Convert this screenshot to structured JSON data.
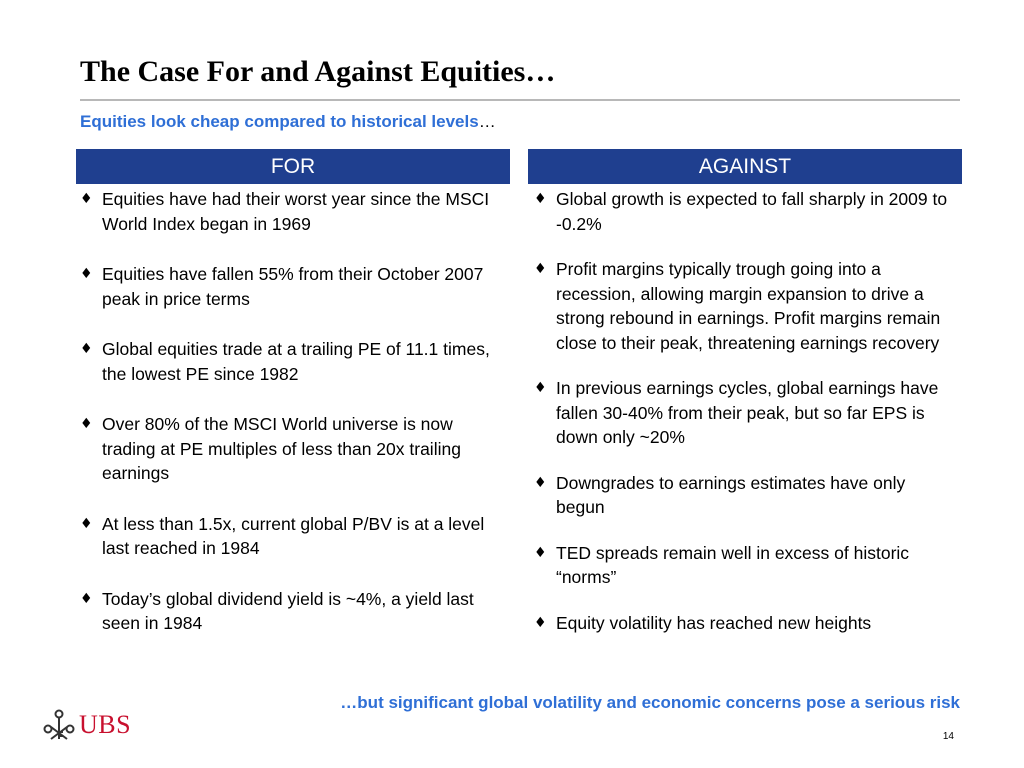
{
  "slide": {
    "title": "The Case For and Against Equities…",
    "subtitle_highlight": "Equities look cheap compared to historical levels",
    "subtitle_tail": "…",
    "page_number": "14",
    "conclusion": "…but significant global volatility and economic concerns pose a serious risk"
  },
  "columns": {
    "for": {
      "header": "FOR",
      "bullets": [
        "Equities have had their worst year since the MSCI World Index began in 1969",
        "Equities have fallen 55% from their October 2007 peak in price terms",
        "Global equities trade at a trailing PE of 11.1 times, the lowest PE since 1982",
        "Over 80% of the MSCI World universe is now trading at PE multiples of less than 20x trailing earnings",
        "At less than 1.5x, current global P/BV is at a level last reached in 1984",
        "Today’s global dividend yield is ~4%, a yield last seen in 1984"
      ]
    },
    "against": {
      "header": "AGAINST",
      "bullets": [
        "Global growth is expected to fall sharply in 2009 to -0.2%",
        "Profit margins typically trough going into a recession, allowing margin expansion to drive a strong rebound in earnings.  Profit margins remain close to their peak, threatening earnings recovery",
        "In previous earnings cycles, global earnings have fallen 30-40% from their peak, but so far EPS is down only ~20%",
        "Downgrades to earnings estimates have only begun",
        "TED spreads remain well in excess of historic “norms”",
        "Equity volatility has reached new heights"
      ]
    }
  },
  "bullet_symbol": "♦",
  "logo": {
    "text": "UBS",
    "icon": "three-keys-icon"
  },
  "colors": {
    "header_fill": "#1f3f8f",
    "accent_blue": "#2f6fd6",
    "logo_red": "#c8102e",
    "rule_gray": "#b8b8b8"
  }
}
